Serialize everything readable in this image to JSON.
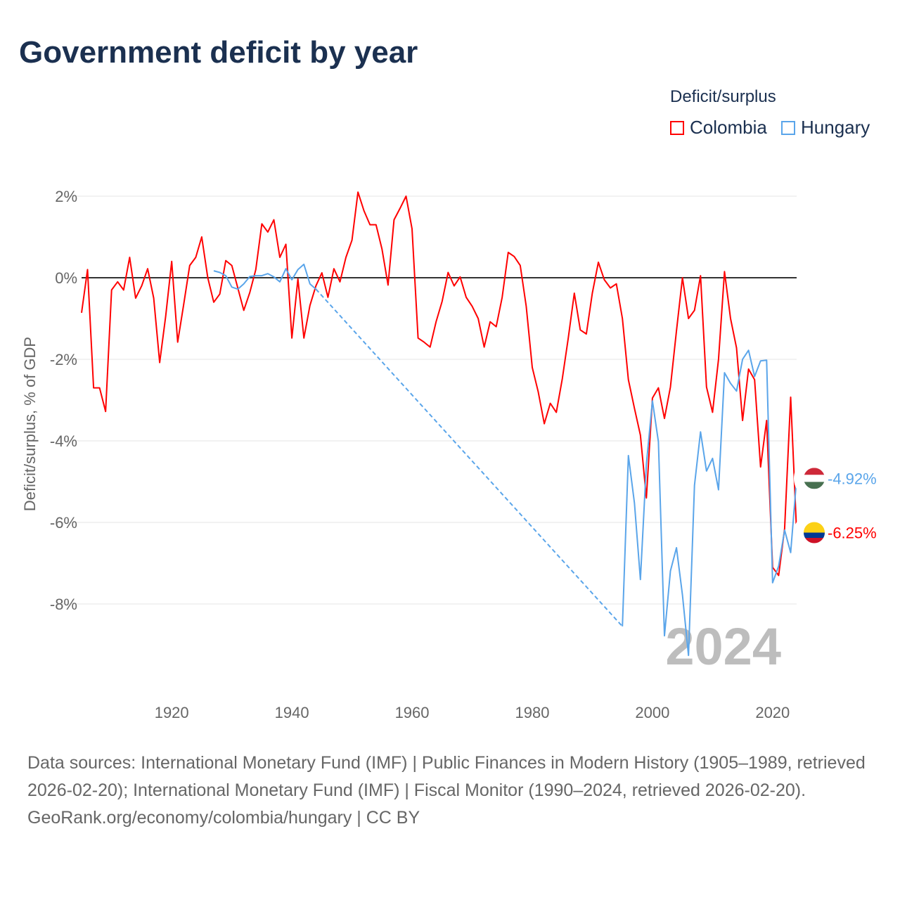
{
  "chart_data": {
    "type": "line",
    "title": "Government deficit by year",
    "ylabel": "Deficit/surplus, % of GDP",
    "xlabel": "",
    "xlim": [
      1905,
      2024
    ],
    "ylim": [
      -10,
      2.7
    ],
    "yticks": [
      2,
      0,
      -2,
      -4,
      -6,
      -8
    ],
    "ytick_labels": [
      "2%",
      "0%",
      "-2%",
      "-4%",
      "-6%",
      "-8%"
    ],
    "xticks": [
      1920,
      1940,
      1960,
      1980,
      2000,
      2020
    ],
    "xtick_labels": [
      "1920",
      "1940",
      "1960",
      "1980",
      "2000",
      "2020"
    ],
    "grid": true,
    "legend_title": "Deficit/surplus",
    "legend_position": "top-right",
    "year_label": "2024",
    "series": [
      {
        "name": "Colombia",
        "color": "#ff0000",
        "end_label": "-6.25%",
        "x": [
          1905,
          1906,
          1907,
          1908,
          1909,
          1910,
          1911,
          1912,
          1913,
          1914,
          1915,
          1916,
          1917,
          1918,
          1919,
          1920,
          1921,
          1922,
          1923,
          1924,
          1925,
          1926,
          1927,
          1928,
          1929,
          1930,
          1931,
          1932,
          1933,
          1934,
          1935,
          1936,
          1937,
          1938,
          1939,
          1940,
          1941,
          1942,
          1943,
          1944,
          1945,
          1946,
          1947,
          1948,
          1949,
          1950,
          1951,
          1952,
          1953,
          1954,
          1955,
          1956,
          1957,
          1958,
          1959,
          1960,
          1961,
          1962,
          1963,
          1964,
          1965,
          1966,
          1967,
          1968,
          1969,
          1970,
          1971,
          1972,
          1973,
          1974,
          1975,
          1976,
          1977,
          1978,
          1979,
          1980,
          1981,
          1982,
          1983,
          1984,
          1985,
          1986,
          1987,
          1988,
          1989,
          1990,
          1991,
          1992,
          1993,
          1994,
          1995,
          1996,
          1997,
          1998,
          1999,
          2000,
          2001,
          2002,
          2003,
          2004,
          2005,
          2006,
          2007,
          2008,
          2009,
          2010,
          2011,
          2012,
          2013,
          2014,
          2015,
          2016,
          2017,
          2018,
          2019,
          2020,
          2021,
          2022,
          2023,
          2024
        ],
        "values": [
          -0.86,
          0.2,
          -2.7,
          -2.7,
          -3.28,
          -0.3,
          -0.1,
          -0.3,
          0.5,
          -0.5,
          -0.2,
          0.22,
          -0.5,
          -2.08,
          -0.95,
          0.4,
          -1.58,
          -0.65,
          0.3,
          0.5,
          1.0,
          0,
          -0.6,
          -0.4,
          0.42,
          0.3,
          -0.25,
          -0.8,
          -0.36,
          0.2,
          1.32,
          1.12,
          1.42,
          0.5,
          0.82,
          -1.48,
          -0.03,
          -1.48,
          -0.68,
          -0.2,
          0.12,
          -0.48,
          0.22,
          -0.1,
          0.5,
          0.92,
          2.1,
          1.64,
          1.3,
          1.3,
          0.7,
          -0.18,
          1.42,
          1.7,
          2.0,
          1.2,
          -1.48,
          -1.58,
          -1.7,
          -1.08,
          -0.58,
          0.13,
          -0.2,
          0.02,
          -0.48,
          -0.7,
          -1.0,
          -1.7,
          -1.08,
          -1.2,
          -0.48,
          0.62,
          0.52,
          0.3,
          -0.7,
          -2.2,
          -2.8,
          -3.58,
          -3.08,
          -3.3,
          -2.48,
          -1.48,
          -0.38,
          -1.28,
          -1.38,
          -0.38,
          0.38,
          -0.05,
          -0.25,
          -0.15,
          -1.0,
          -2.5,
          -3.2,
          -3.86,
          -5.4,
          -2.95,
          -2.7,
          -3.45,
          -2.68,
          -1.3,
          0,
          -1.0,
          -0.8,
          0.05,
          -2.68,
          -3.3,
          -2.0,
          0.15,
          -1.0,
          -1.72,
          -3.5,
          -2.24,
          -2.5,
          -4.64,
          -3.5,
          -7.1,
          -7.3,
          -6.15,
          -2.93,
          -6.25
        ]
      },
      {
        "name": "Hungary",
        "color": "#5aa5ea",
        "end_label": "-4.92%",
        "x": [
          1927,
          1928,
          1929,
          1930,
          1931,
          1932,
          1933,
          1934,
          1935,
          1936,
          1937,
          1938,
          1939,
          1940,
          1941,
          1942,
          1943,
          1944,
          1995,
          1996,
          1997,
          1998,
          1999,
          2000,
          2001,
          2002,
          2003,
          2004,
          2005,
          2006,
          2007,
          2008,
          2009,
          2010,
          2011,
          2012,
          2013,
          2014,
          2015,
          2016,
          2017,
          2018,
          2019,
          2020,
          2021,
          2022,
          2023,
          2024
        ],
        "values": [
          0.17,
          0.13,
          0.05,
          -0.23,
          -0.28,
          -0.15,
          0.03,
          0.05,
          0.05,
          0.1,
          0.02,
          -0.1,
          0.22,
          -0.05,
          0.2,
          0.33,
          -0.15,
          -0.28,
          -8.55,
          -4.36,
          -5.52,
          -7.4,
          -4.57,
          -3.02,
          -4.02,
          -8.78,
          -7.19,
          -6.62,
          -7.78,
          -9.26,
          -5.09,
          -3.78,
          -4.74,
          -4.43,
          -5.2,
          -2.33,
          -2.59,
          -2.78,
          -2.0,
          -1.78,
          -2.42,
          -2.04,
          -2.02,
          -7.48,
          -7.07,
          -6.19,
          -6.74,
          -4.92
        ]
      }
    ]
  },
  "footer": {
    "sources": "Data sources: International Monetary Fund (IMF) | Public Finances in Modern History (1905–1989, retrieved 2026-02-20); International Monetary Fund (IMF) | Fiscal Monitor (1990–2024, retrieved 2026-02-20).",
    "credit": "GeoRank.org/economy/colombia/hungary | CC BY"
  }
}
